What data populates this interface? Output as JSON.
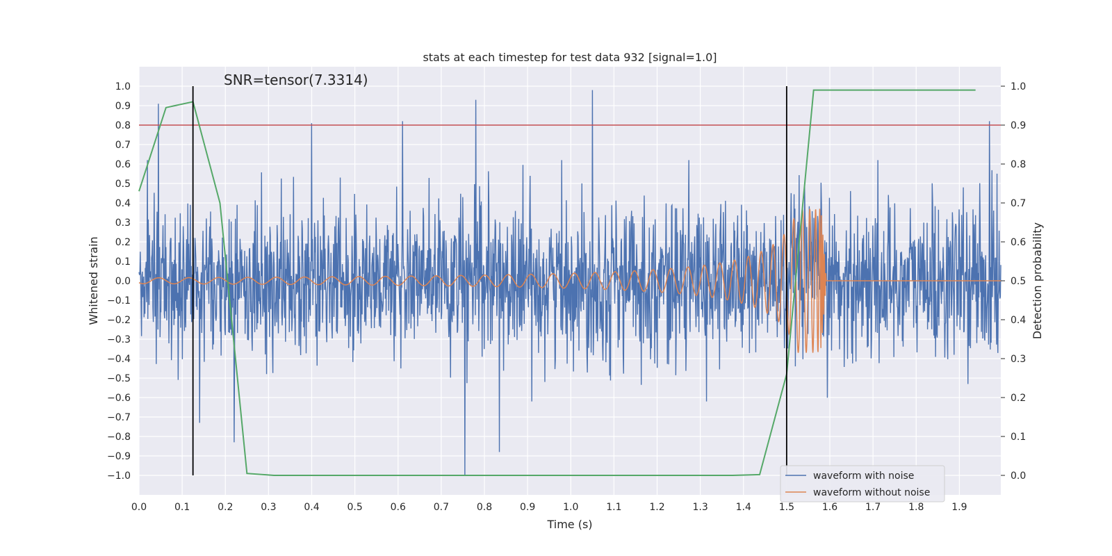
{
  "chart_data": {
    "type": "line",
    "title": "stats at each timestep for test data 932 [signal=1.0]",
    "annotation": "SNR=tensor(7.3314)",
    "xlabel": "Time (s)",
    "ylabel_left": "Whitened strain",
    "ylabel_right": "Detection probability",
    "xlim": [
      0.0,
      1.996
    ],
    "ylim_left": [
      -1.1,
      1.1
    ],
    "ylim_right": [
      -0.05,
      1.05
    ],
    "xticks": [
      "0.0",
      "0.1",
      "0.2",
      "0.3",
      "0.4",
      "0.5",
      "0.6",
      "0.7",
      "0.8",
      "0.9",
      "1.0",
      "1.1",
      "1.2",
      "1.3",
      "1.4",
      "1.5",
      "1.6",
      "1.7",
      "1.8",
      "1.9"
    ],
    "yticks_left": [
      "1.0",
      "0.9",
      "0.8",
      "0.7",
      "0.6",
      "0.5",
      "0.4",
      "0.3",
      "0.2",
      "0.1",
      "0.0",
      "−0.1",
      "−0.2",
      "−0.3",
      "−0.4",
      "−0.5",
      "−0.6",
      "−0.7",
      "−0.8",
      "−0.9",
      "−1.0"
    ],
    "yticks_right": [
      "1.0",
      "0.9",
      "0.8",
      "0.7",
      "0.6",
      "0.5",
      "0.4",
      "0.3",
      "0.2",
      "0.1",
      "0.0"
    ],
    "grid": true,
    "legend_position": "bottom-right",
    "threshold_line": {
      "axis": "right",
      "value": 0.9,
      "color": "#c44e52"
    },
    "vertical_lines": [
      {
        "x": 0.125,
        "color": "#000000"
      },
      {
        "x": 1.5,
        "color": "#000000"
      }
    ],
    "series": [
      {
        "name": "waveform with noise",
        "axis": "left",
        "color": "#4c72b0",
        "x_range": [
          0.0,
          1.996
        ],
        "noise_amplitude": 0.5,
        "notable_spikes": [
          {
            "x": 0.045,
            "y": 0.91
          },
          {
            "x": 0.13,
            "y": 0.22
          },
          {
            "x": 0.14,
            "y": -0.73
          },
          {
            "x": 0.22,
            "y": -0.83
          },
          {
            "x": 0.4,
            "y": 0.81
          },
          {
            "x": 0.61,
            "y": 0.82
          },
          {
            "x": 0.755,
            "y": -1.0
          },
          {
            "x": 0.78,
            "y": 0.93
          },
          {
            "x": 0.835,
            "y": -0.88
          },
          {
            "x": 1.05,
            "y": 0.98
          },
          {
            "x": 1.97,
            "y": 0.82
          }
        ]
      },
      {
        "name": "waveform without noise",
        "axis": "left",
        "color": "#dd8452",
        "waveform": "chirp",
        "merger_time": 1.58,
        "start_amplitude": 0.015,
        "peak_amplitude": 0.37,
        "start_frequency_hz": 14
      },
      {
        "name": "",
        "axis": "right",
        "color": "#55a868",
        "x": [
          0.0,
          0.0625,
          0.125,
          0.1875,
          0.25,
          0.3125,
          0.375,
          0.4375,
          0.5,
          0.5625,
          0.625,
          0.6875,
          0.75,
          0.8125,
          0.875,
          0.9375,
          1.0,
          1.0625,
          1.125,
          1.1875,
          1.25,
          1.3125,
          1.375,
          1.4375,
          1.5,
          1.5625,
          1.625,
          1.6875,
          1.75,
          1.8125,
          1.875,
          1.9375
        ],
        "values": [
          0.73,
          0.945,
          0.96,
          0.7,
          0.005,
          0.0,
          0.0,
          0.0,
          0.0,
          0.0,
          0.0,
          0.0,
          0.0,
          0.0,
          0.0,
          0.0,
          0.0,
          0.0,
          0.0,
          0.0,
          0.0,
          0.0,
          0.0,
          0.002,
          0.26,
          0.99,
          0.99,
          0.99,
          0.99,
          0.99,
          0.99,
          0.99
        ]
      }
    ]
  }
}
